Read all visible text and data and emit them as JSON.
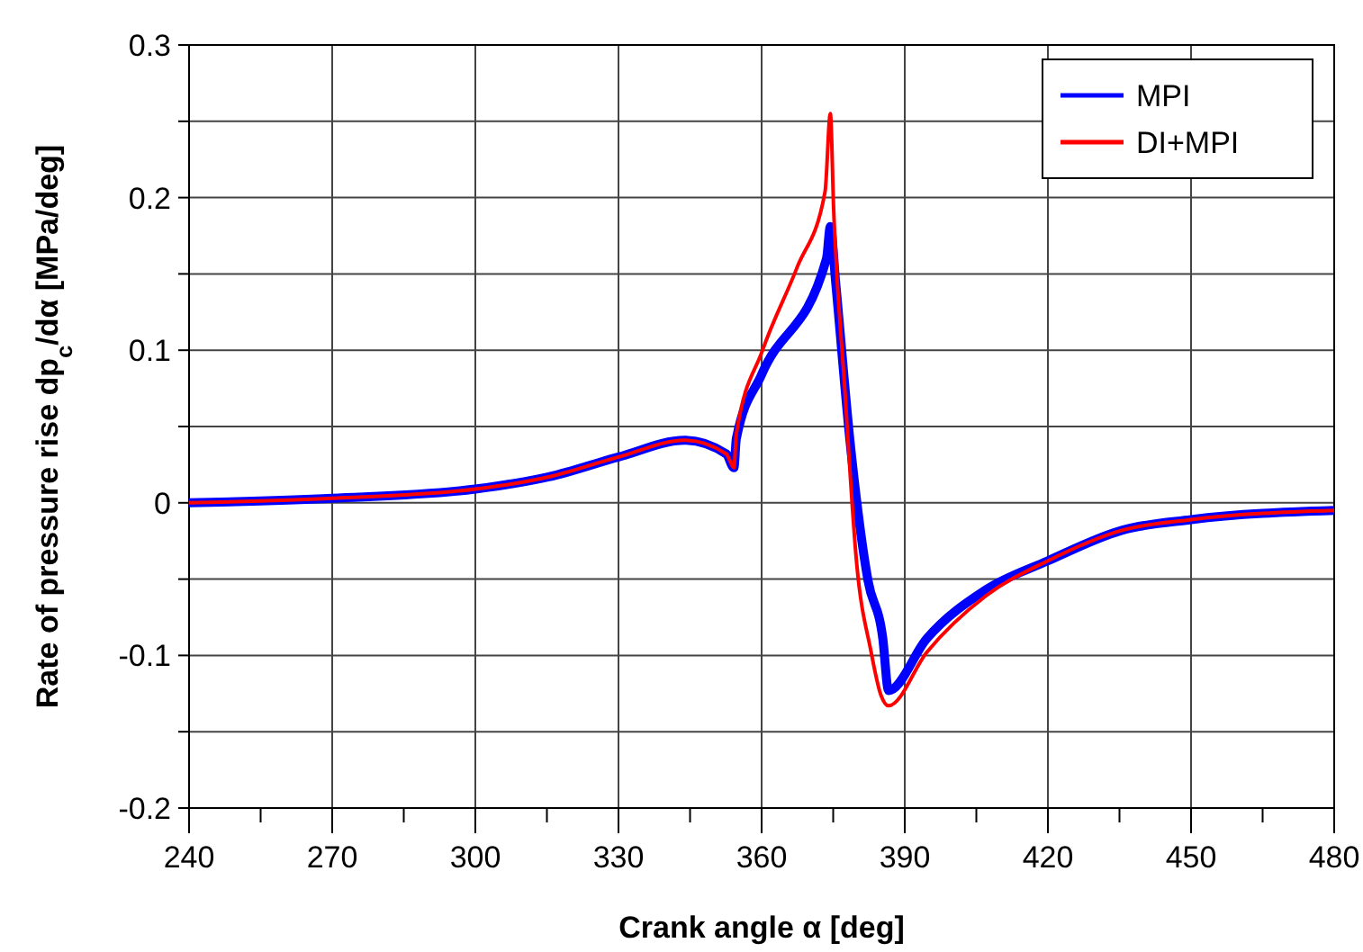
{
  "chart_data": {
    "type": "line",
    "xlabel": "Crank angle α [deg]",
    "ylabel": "Rate of pressure rise dp$_{c}$/dα [MPa/deg]",
    "xlim": [
      240,
      480
    ],
    "ylim": [
      -0.2,
      0.3
    ],
    "xticks": [
      240,
      {
        "value": 255,
        "label": null
      },
      270,
      {
        "value": 285,
        "label": null
      },
      300,
      {
        "value": 315,
        "label": null
      },
      330,
      {
        "value": 345,
        "label": null
      },
      360,
      {
        "value": 375,
        "label": null
      },
      390,
      {
        "value": 405,
        "label": null
      },
      420,
      {
        "value": 435,
        "label": null
      },
      450,
      {
        "value": 465,
        "label": null
      },
      480
    ],
    "yticks": [
      -0.2,
      {
        "value": -0.15,
        "label": null
      },
      -0.1,
      {
        "value": -0.05,
        "label": null
      },
      0,
      {
        "value": 0.05,
        "label": null
      },
      0.1,
      {
        "value": 0.15,
        "label": null
      },
      0.2,
      {
        "value": 0.25,
        "label": null
      },
      0.3
    ],
    "grid": true,
    "legend": "top right",
    "line_style": "solid",
    "marker": "none",
    "series": [
      {
        "name": "MPI",
        "color": "#0000ff",
        "x": [
          240,
          270,
          300,
          315.4,
          330,
          343.9,
          352.6,
          354.2,
          354.7,
          360,
          373.6,
          374.4,
          375.5,
          378.6,
          382.3,
          385.4,
          386.6,
          394.6,
          407,
          420,
          435.5,
          450,
          480
        ],
        "values": [
          0,
          0.003,
          0.009,
          0.017,
          0.03,
          0.041,
          0.032,
          0.023,
          0.042,
          0.084,
          0.16,
          0.181,
          0.145,
          0.038,
          -0.051,
          -0.089,
          -0.123,
          -0.089,
          -0.057,
          -0.038,
          -0.018,
          -0.011,
          -0.005
        ]
      },
      {
        "name": "DI+MPI",
        "color": "#ff0000",
        "x": [
          240,
          270,
          300,
          315.4,
          330,
          343.9,
          352.6,
          354.2,
          354.7,
          360.2,
          367.4,
          373.3,
          374.4,
          375.1,
          377.4,
          379.9,
          382.9,
          385,
          386.6,
          394.6,
          407,
          420,
          435.5,
          450,
          480
        ],
        "values": [
          0,
          0.003,
          0.009,
          0.017,
          0.03,
          0.041,
          0.032,
          0.023,
          0.045,
          0.1,
          0.154,
          0.204,
          0.255,
          0.192,
          0.076,
          -0.039,
          -0.097,
          -0.126,
          -0.133,
          -0.098,
          -0.061,
          -0.038,
          -0.018,
          -0.011,
          -0.005
        ]
      }
    ]
  }
}
